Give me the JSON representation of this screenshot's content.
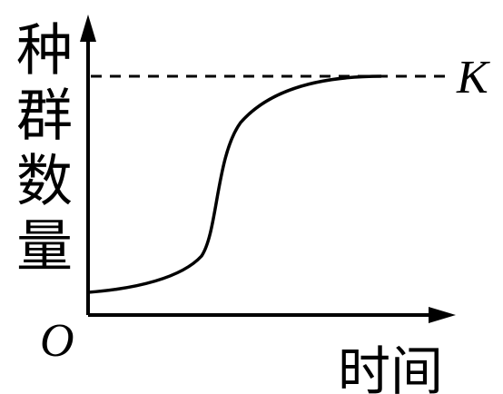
{
  "labels": {
    "y_axis": "种群数量",
    "x_axis": "时间",
    "k": "K",
    "origin": "O"
  }
}
